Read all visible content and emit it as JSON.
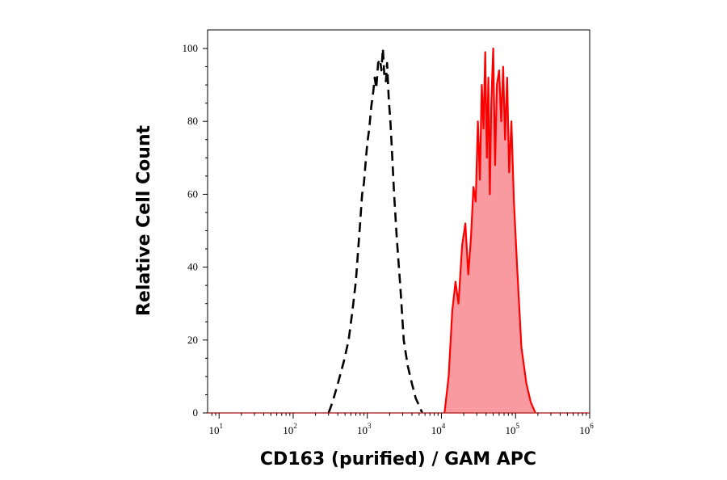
{
  "chart_data": {
    "type": "area",
    "title": "",
    "xlabel": "CD163 (purified) / GAM APC",
    "ylabel": "Relative Cell Count",
    "x_scale": "log",
    "x_range": [
      7,
      1000000
    ],
    "ylim": [
      0,
      100
    ],
    "y_ticks": [
      0,
      20,
      40,
      60,
      80,
      100
    ],
    "x_ticks": [
      {
        "base": "10",
        "exp": "1",
        "value": 10
      },
      {
        "base": "10",
        "exp": "2",
        "value": 100
      },
      {
        "base": "10",
        "exp": "3",
        "value": 1000
      },
      {
        "base": "10",
        "exp": "4",
        "value": 10000
      },
      {
        "base": "10",
        "exp": "5",
        "value": 100000
      },
      {
        "base": "10",
        "exp": "6",
        "value": 1000000
      }
    ],
    "grid": false,
    "legend": "none",
    "series": [
      {
        "style": "dashed",
        "fill": false,
        "color": "#000000",
        "x": [
          300,
          340,
          400,
          480,
          560,
          630,
          700,
          760,
          800,
          850,
          900,
          960,
          1000,
          1060,
          1130,
          1200,
          1260,
          1320,
          1400,
          1480,
          1550,
          1620,
          1700,
          1780,
          1850,
          1950,
          2050,
          2150,
          2300,
          2500,
          2800,
          3100,
          3500,
          4000,
          4500,
          5000,
          5500
        ],
        "values": [
          0,
          3,
          8,
          14,
          20,
          28,
          36,
          46,
          52,
          60,
          63,
          70,
          74,
          78,
          84,
          88,
          92,
          89,
          96,
          97,
          94,
          100,
          92,
          91,
          96,
          86,
          80,
          72,
          60,
          48,
          34,
          20,
          13,
          8,
          4,
          2,
          0
        ]
      },
      {
        "style": "solid",
        "fill": true,
        "color": "#ff0000",
        "fill_color": "#f89aa0",
        "x": [
          11000,
          12500,
          14000,
          15500,
          17000,
          19000,
          21000,
          23000,
          25000,
          27000,
          29000,
          31000,
          33000,
          35000,
          37000,
          39000,
          41000,
          43000,
          45000,
          47000,
          50000,
          53000,
          56000,
          60000,
          64000,
          68000,
          72000,
          77000,
          82000,
          88000,
          95000,
          105000,
          120000,
          140000,
          160000,
          185000
        ],
        "values": [
          0,
          10,
          28,
          36,
          30,
          46,
          52,
          38,
          48,
          62,
          58,
          80,
          64,
          90,
          78,
          99,
          70,
          92,
          60,
          85,
          100,
          68,
          90,
          94,
          80,
          95,
          75,
          92,
          66,
          80,
          58,
          40,
          18,
          8,
          3,
          0
        ]
      }
    ]
  }
}
